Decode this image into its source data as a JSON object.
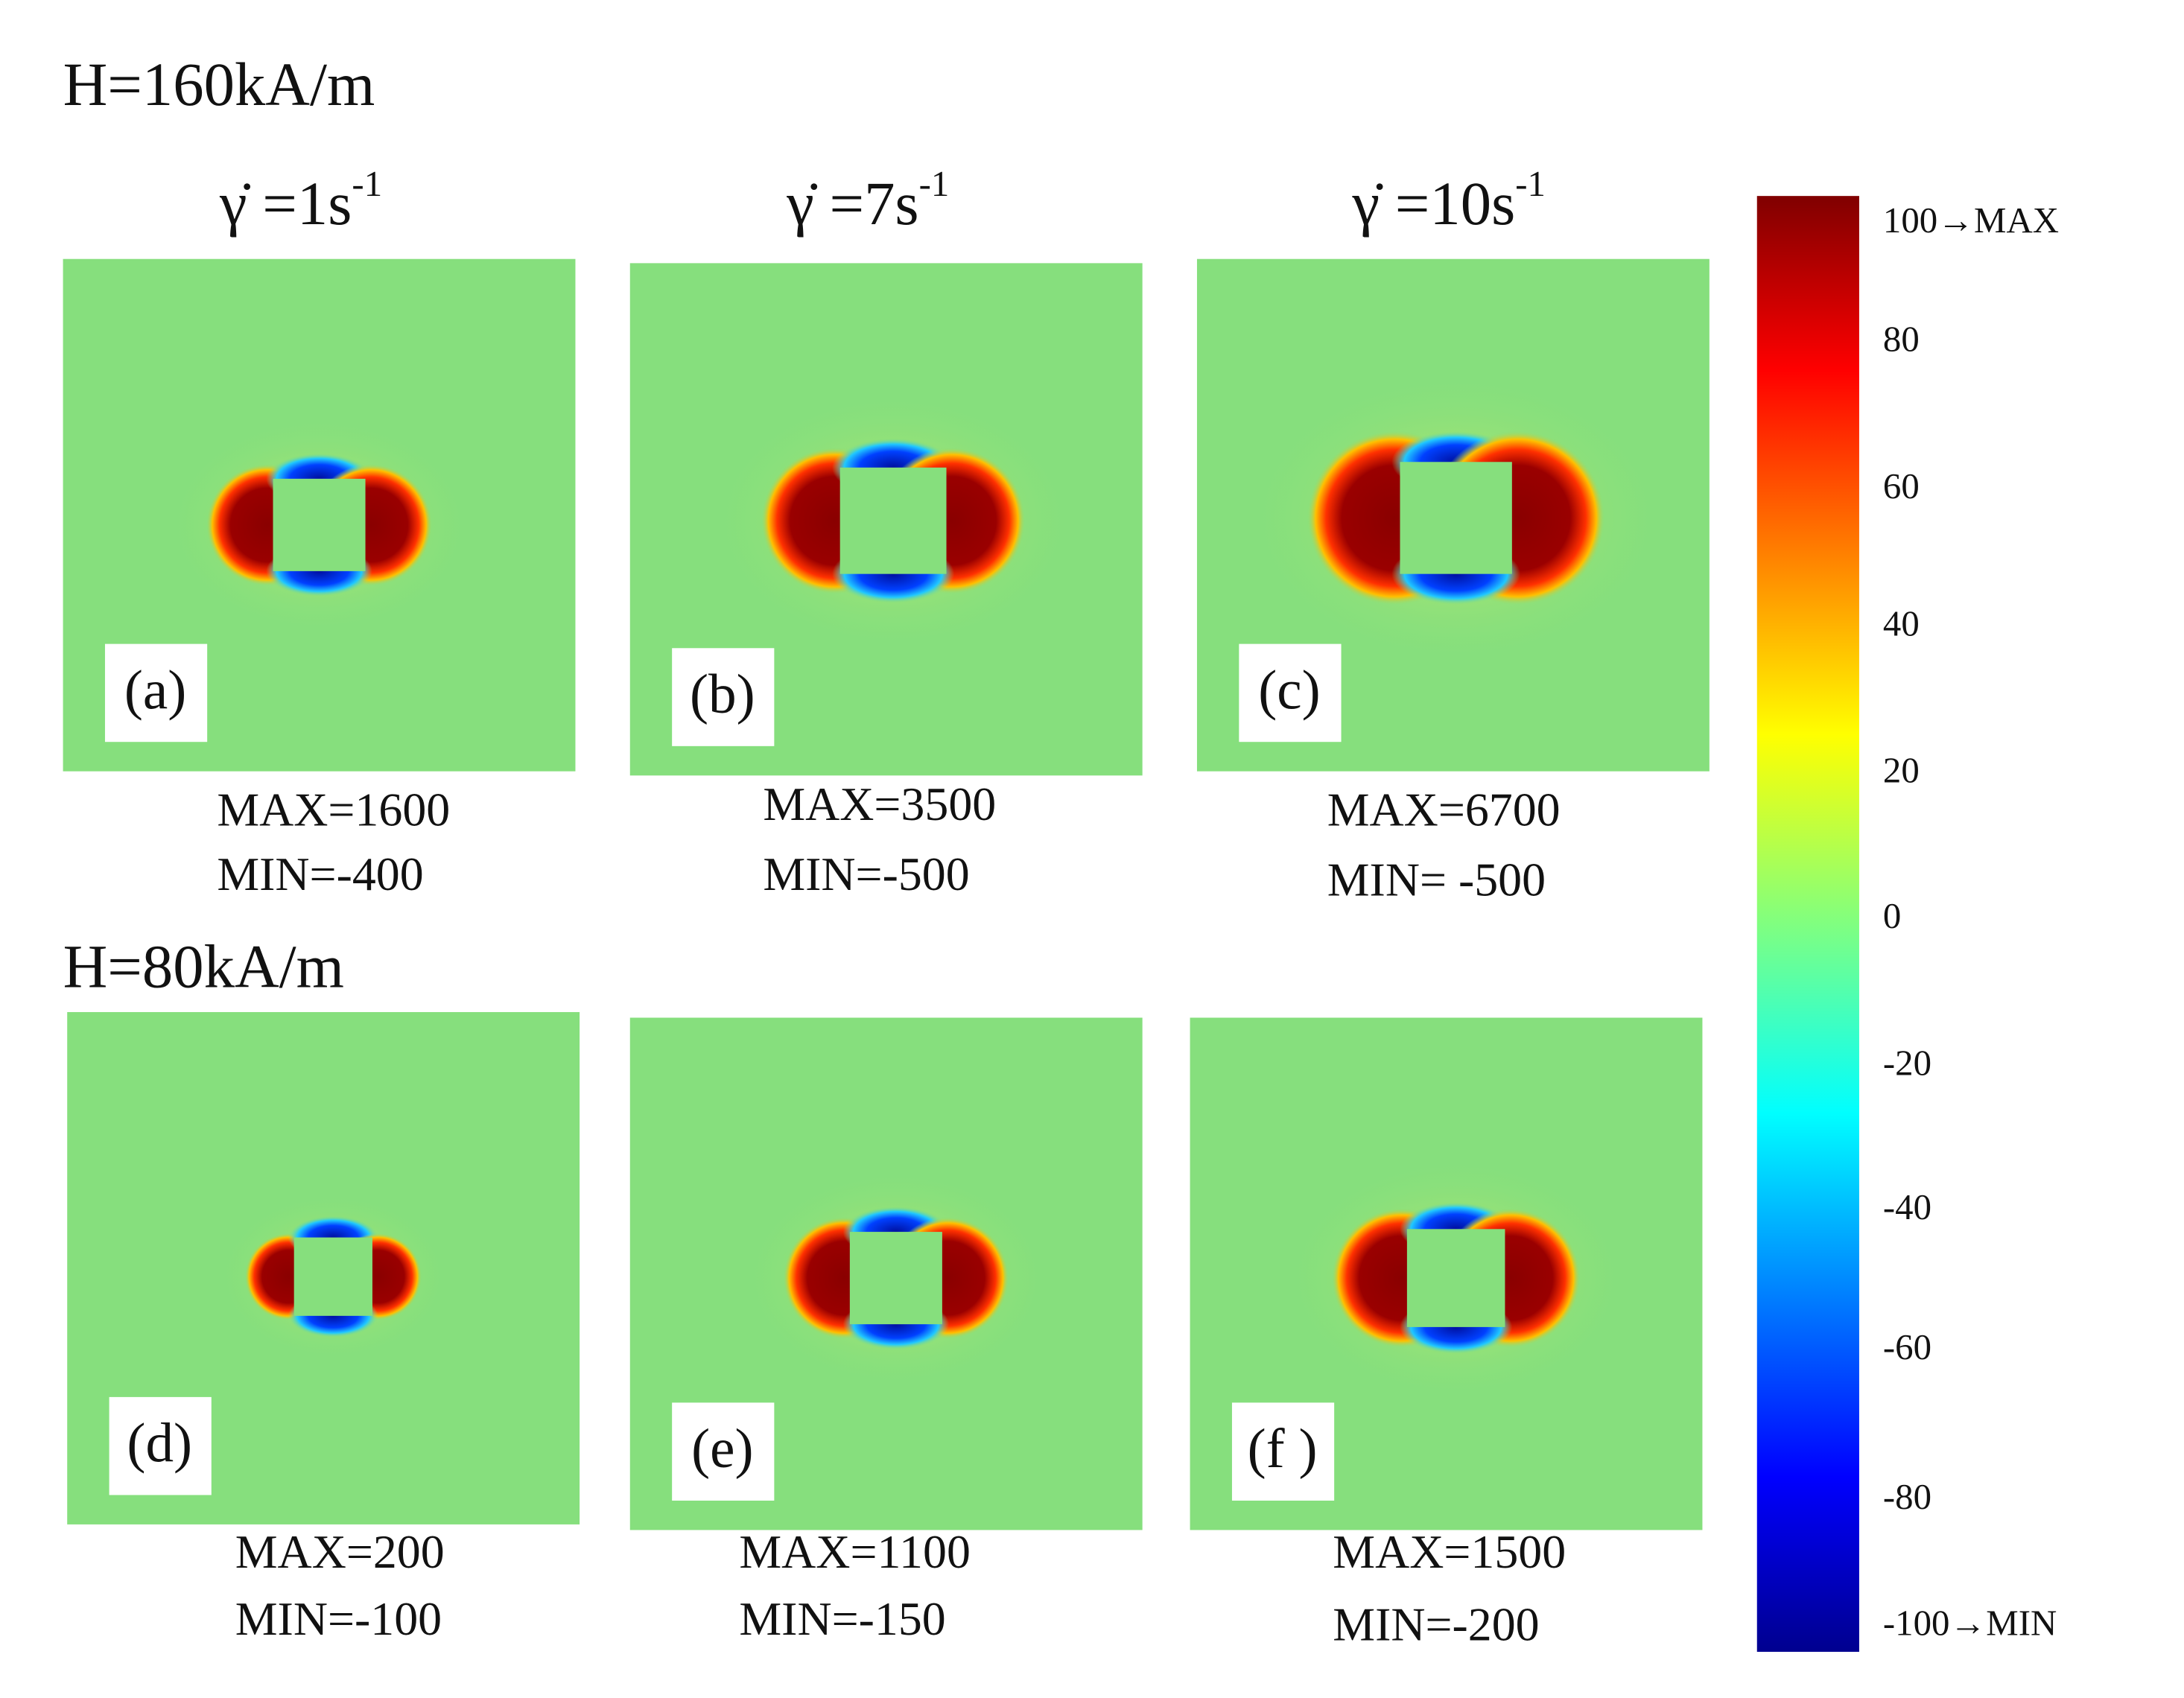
{
  "figure": {
    "rows": [
      {
        "title": "H=160kA/m",
        "panels": [
          {
            "label": "(a)",
            "max": "MAX=1600",
            "min": "MIN=-400"
          },
          {
            "label": "(b)",
            "max": "MAX=3500",
            "min": "MIN=-500"
          },
          {
            "label": "(c)",
            "max": "MAX=6700",
            "min": "MIN= -500"
          }
        ]
      },
      {
        "title": "H=80kA/m",
        "panels": [
          {
            "label": "(d)",
            "max": "MAX=200",
            "min": "MIN=-100"
          },
          {
            "label": "(e)",
            "max": "MAX=1100",
            "min": "MIN=-150"
          },
          {
            "label": "(f )",
            "max": "MAX=1500",
            "min": "MIN=-200"
          }
        ]
      }
    ],
    "columns": [
      {
        "symbol": "γ̇",
        "text": " =1s",
        "exponent": "-1"
      },
      {
        "symbol": "γ̇",
        "text": " =7s",
        "exponent": "-1"
      },
      {
        "symbol": "γ̇",
        "text": " =10s",
        "exponent": "-1"
      }
    ],
    "colorbar": {
      "ticks": [
        "100→MAX",
        "80",
        "60",
        "40",
        "20",
        "0",
        "-20",
        "-40",
        "-60",
        "-80",
        "-100→MIN"
      ]
    }
  }
}
